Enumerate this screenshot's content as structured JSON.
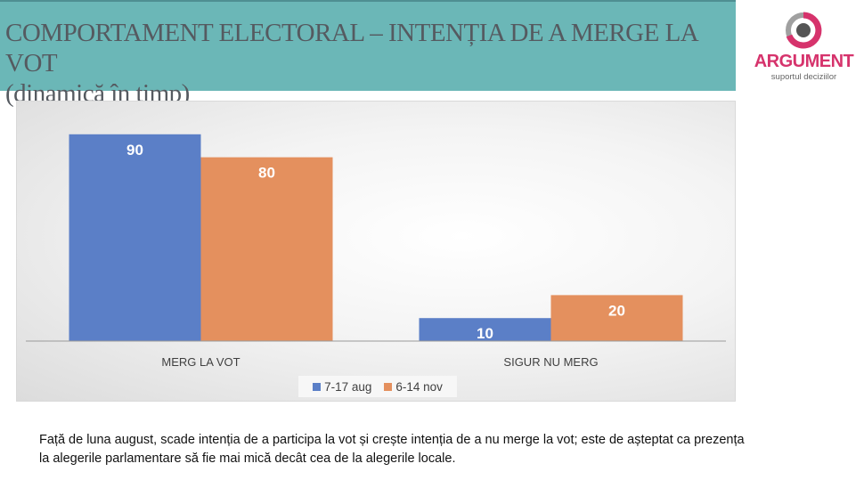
{
  "header": {
    "title_line1": "COMPORTAMENT ELECTORAL – INTENȚIA DE A MERGE LA VOT",
    "title_line2": "(dinamică în timp)"
  },
  "logo": {
    "name": "ARGUMENT",
    "tagline": "suportul deciziilor",
    "colors": {
      "brand": "#d6336c",
      "gray": "#a0a0a0",
      "dot": "#555555"
    }
  },
  "chart_data": {
    "type": "bar",
    "categories": [
      "MERG LA VOT",
      "SIGUR NU MERG"
    ],
    "series": [
      {
        "name": "7-17 aug",
        "values": [
          90,
          10
        ],
        "color": "#5b7fc7"
      },
      {
        "name": "6-14 nov",
        "values": [
          80,
          20
        ],
        "color": "#e4905e"
      }
    ],
    "title": "",
    "xlabel": "",
    "ylabel": "",
    "ylim": [
      0,
      100
    ],
    "grid": false,
    "legend_position": "bottom"
  },
  "footer": {
    "note": "Față de luna august, scade intenția de a participa la vot și crește intenția de a nu merge la vot; este de așteptat ca prezența la alegerile parlamentare să fie mai mică decât cea de la alegerile locale."
  }
}
